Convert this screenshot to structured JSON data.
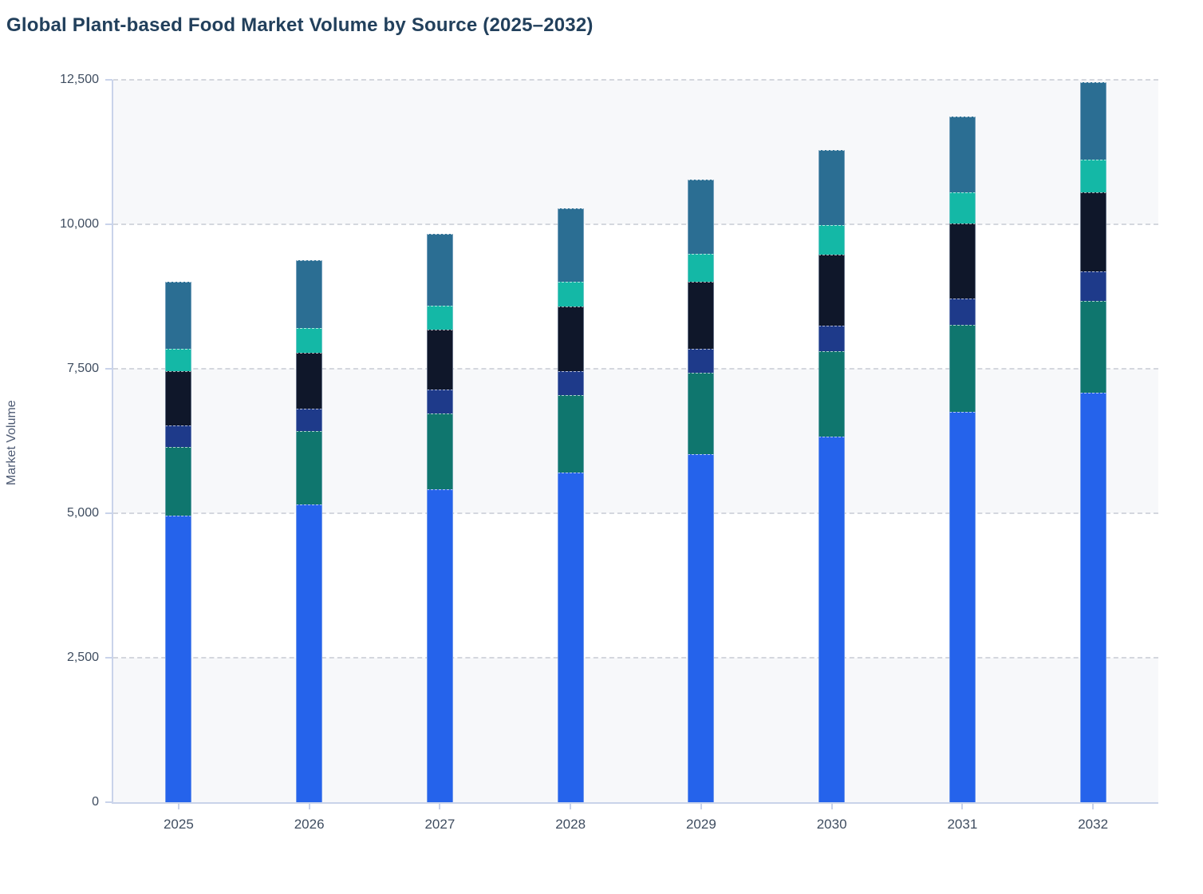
{
  "chart_data": {
    "type": "bar",
    "stacked": true,
    "title": "Global Plant-based Food Market Volume by Source (2025–2032)",
    "xlabel": "",
    "ylabel": "Market Volume",
    "categories": [
      "2025",
      "2026",
      "2027",
      "2028",
      "2029",
      "2030",
      "2031",
      "2032"
    ],
    "ylim": [
      0,
      12500
    ],
    "y_ticks": [
      {
        "value": 0,
        "label": "0"
      },
      {
        "value": 2500,
        "label": "2,500"
      },
      {
        "value": 5000,
        "label": "5,000"
      },
      {
        "value": 7500,
        "label": "7,500"
      },
      {
        "value": 10000,
        "label": "10,000"
      },
      {
        "value": 12500,
        "label": "12,500"
      }
    ],
    "grid": "horizontal-dashed",
    "background_bands": "alternating (0-2500, 5000-7500, 10000-12500 shaded #f7f8fa)",
    "legend": "none",
    "series": [
      {
        "name": "series-1-bottom",
        "color": "#2563eb",
        "values": [
          4960,
          5150,
          5420,
          5700,
          6020,
          6330,
          6760,
          7080
        ]
      },
      {
        "name": "series-2",
        "color": "#0f766e",
        "values": [
          1180,
          1270,
          1310,
          1340,
          1410,
          1480,
          1500,
          1600
        ]
      },
      {
        "name": "series-3",
        "color": "#1e3a8a",
        "values": [
          380,
          390,
          410,
          420,
          420,
          440,
          460,
          500
        ]
      },
      {
        "name": "series-4",
        "color": "#0f172a",
        "values": [
          940,
          970,
          1040,
          1120,
          1160,
          1230,
          1290,
          1370
        ]
      },
      {
        "name": "series-5",
        "color": "#14b8a6",
        "values": [
          380,
          430,
          410,
          430,
          480,
          510,
          540,
          570
        ]
      },
      {
        "name": "series-6-top",
        "color": "#2b6e93",
        "values": [
          1170,
          1170,
          1240,
          1260,
          1280,
          1300,
          1320,
          1340
        ]
      }
    ],
    "totals": [
      9010,
      9380,
      9830,
      10270,
      10770,
      11290,
      11870,
      12460
    ],
    "colors": {
      "title_text": "#22405c",
      "axis_line": "#c9d3ea",
      "tick_label": "#3f4d60",
      "axis_title": "#4d5a73",
      "gridline": "#d4d7de",
      "shaded_band": "#f7f8fa"
    }
  }
}
